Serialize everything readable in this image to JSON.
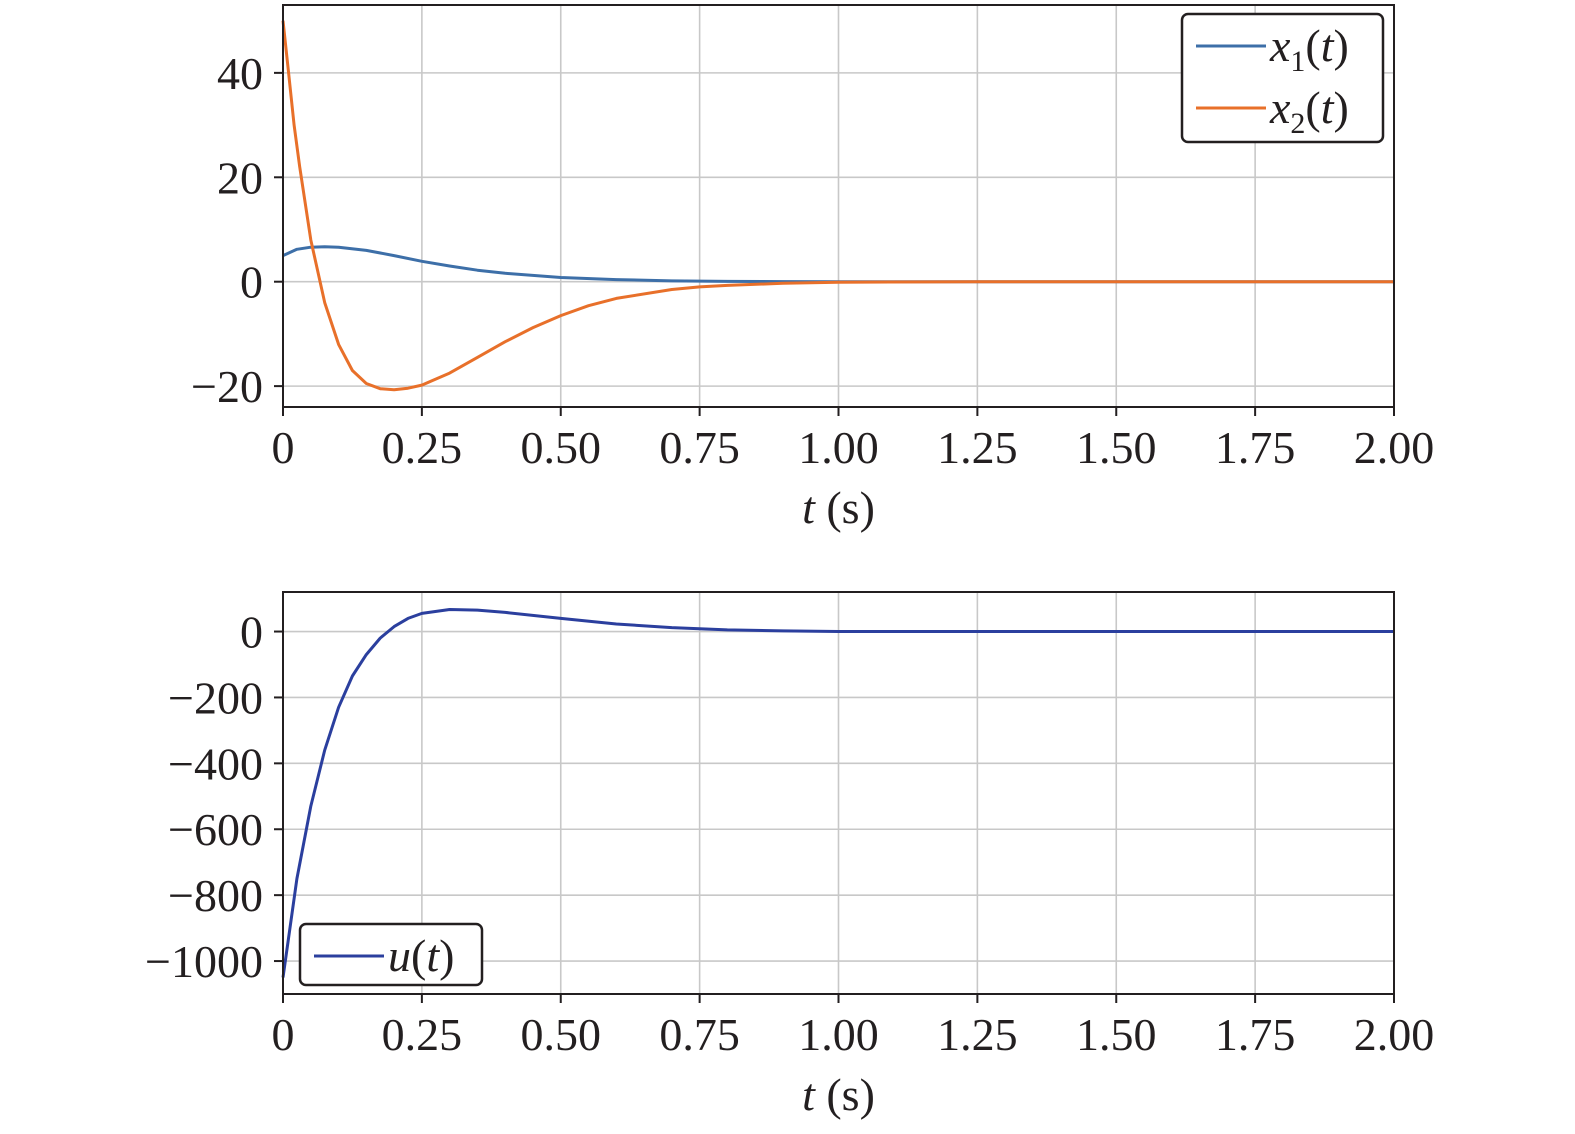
{
  "chart_data": [
    {
      "type": "line",
      "title": "",
      "xlabel": "t (s)",
      "xlabel_var": "t",
      "xlabel_unit": " (s)",
      "ylabel": "",
      "xlim": [
        0,
        2.0
      ],
      "ylim": [
        -24,
        53
      ],
      "xticks": [
        0,
        0.25,
        0.5,
        0.75,
        1.0,
        1.25,
        1.5,
        1.75,
        2.0
      ],
      "xtick_labels": [
        "0",
        "0.25",
        "0.50",
        "0.75",
        "1.00",
        "1.25",
        "1.50",
        "1.75",
        "2.00"
      ],
      "yticks": [
        -20,
        0,
        20,
        40
      ],
      "ytick_labels": [
        "−20",
        "0",
        "20",
        "40"
      ],
      "grid": true,
      "legend_position": "top-right",
      "series": [
        {
          "name": "x1(t)",
          "legend_var": "x",
          "legend_sub": "1",
          "legend_arg": "(t)",
          "color": "#3d6fa8",
          "x": [
            0,
            0.025,
            0.05,
            0.075,
            0.1,
            0.15,
            0.2,
            0.25,
            0.3,
            0.35,
            0.4,
            0.5,
            0.6,
            0.7,
            0.8,
            0.9,
            1.0,
            1.25,
            1.5,
            1.75,
            2.0
          ],
          "y": [
            5,
            6.2,
            6.6,
            6.7,
            6.6,
            6.0,
            5.0,
            3.9,
            3.0,
            2.2,
            1.6,
            0.8,
            0.4,
            0.15,
            0.05,
            0.02,
            0,
            0,
            0,
            0,
            0
          ]
        },
        {
          "name": "x2(t)",
          "legend_var": "x",
          "legend_sub": "2",
          "legend_arg": "(t)",
          "color": "#e8702a",
          "x": [
            0,
            0.01,
            0.02,
            0.03,
            0.05,
            0.075,
            0.1,
            0.125,
            0.15,
            0.175,
            0.2,
            0.225,
            0.25,
            0.3,
            0.35,
            0.4,
            0.45,
            0.5,
            0.55,
            0.6,
            0.7,
            0.75,
            0.8,
            0.9,
            1.0,
            1.25,
            1.5,
            1.75,
            2.0
          ],
          "y": [
            50,
            40,
            30,
            22,
            8,
            -4,
            -12,
            -17,
            -19.5,
            -20.5,
            -20.7,
            -20.4,
            -19.8,
            -17.5,
            -14.5,
            -11.5,
            -8.8,
            -6.5,
            -4.6,
            -3.2,
            -1.5,
            -1.0,
            -0.7,
            -0.3,
            -0.1,
            0,
            0,
            0,
            0
          ]
        }
      ]
    },
    {
      "type": "line",
      "title": "",
      "xlabel": "t (s)",
      "xlabel_var": "t",
      "xlabel_unit": " (s)",
      "ylabel": "",
      "xlim": [
        0,
        2.0
      ],
      "ylim": [
        -1100,
        120
      ],
      "xticks": [
        0,
        0.25,
        0.5,
        0.75,
        1.0,
        1.25,
        1.5,
        1.75,
        2.0
      ],
      "xtick_labels": [
        "0",
        "0.25",
        "0.50",
        "0.75",
        "1.00",
        "1.25",
        "1.50",
        "1.75",
        "2.00"
      ],
      "yticks": [
        -1000,
        -800,
        -600,
        -400,
        -200,
        0
      ],
      "ytick_labels": [
        "−1000",
        "−800",
        "−600",
        "−400",
        "−200",
        "0"
      ],
      "grid": true,
      "legend_position": "bottom-left",
      "series": [
        {
          "name": "u(t)",
          "legend_var": "u",
          "legend_sub": "",
          "legend_arg": "(t)",
          "color": "#2b3f9e",
          "x": [
            0,
            0.025,
            0.05,
            0.075,
            0.1,
            0.125,
            0.15,
            0.175,
            0.2,
            0.225,
            0.25,
            0.3,
            0.35,
            0.4,
            0.5,
            0.6,
            0.7,
            0.8,
            0.9,
            1.0,
            1.25,
            1.5,
            1.75,
            2.0
          ],
          "y": [
            -1050,
            -750,
            -530,
            -360,
            -230,
            -135,
            -70,
            -20,
            15,
            40,
            55,
            67,
            65,
            58,
            40,
            23,
            12,
            5,
            2,
            0,
            0,
            0,
            0,
            0
          ]
        }
      ]
    }
  ]
}
